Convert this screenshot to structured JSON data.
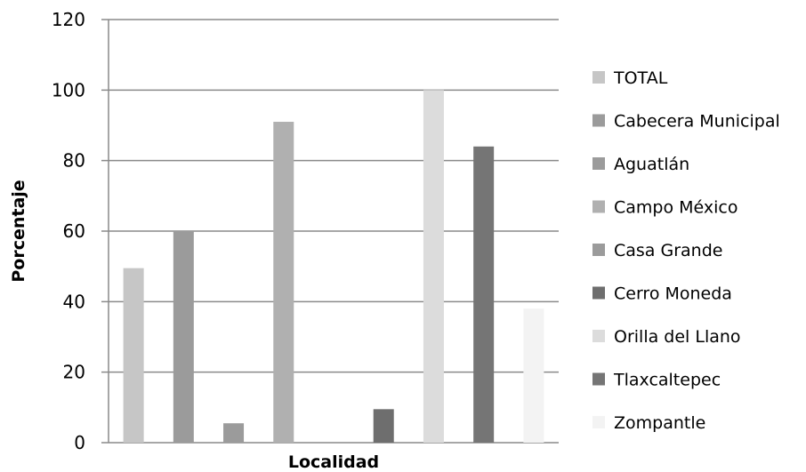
{
  "chart_data": {
    "type": "bar",
    "xlabel": "Localidad",
    "ylabel": "Porcentaje",
    "ylim": [
      0,
      120
    ],
    "yticks": [
      0,
      20,
      40,
      60,
      80,
      100,
      120
    ],
    "grid": true,
    "legend_position": "right",
    "series": [
      {
        "name": "TOTAL",
        "value": 49.5,
        "color": "#c6c6c6"
      },
      {
        "name": "Cabecera Municipal",
        "value": 60,
        "color": "#9b9b9b"
      },
      {
        "name": "Aguatlán",
        "value": 5.5,
        "color": "#9b9b9b"
      },
      {
        "name": "Campo México",
        "value": 91,
        "color": "#b0b0b0"
      },
      {
        "name": "Casa Grande",
        "value": 0,
        "color": "#9b9b9b"
      },
      {
        "name": "Cerro Moneda",
        "value": 9.5,
        "color": "#6e6e6e"
      },
      {
        "name": "Orilla del Llano",
        "value": 100,
        "color": "#dcdcdc"
      },
      {
        "name": "Tlaxcaltepec",
        "value": 84,
        "color": "#757575"
      },
      {
        "name": "Zompantle",
        "value": 38,
        "color": "#f3f3f3"
      }
    ]
  }
}
